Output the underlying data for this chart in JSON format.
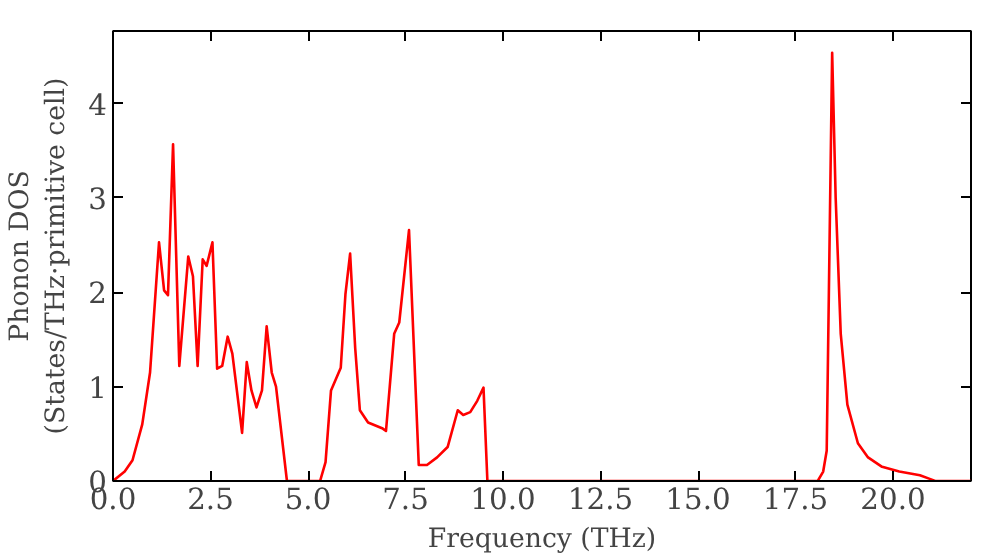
{
  "chart_data": {
    "type": "line",
    "xlabel": "Frequency (THz)",
    "ylabel": "Phonon DOS\n(States/THz·primitive cell)",
    "xlim": [
      0,
      22.0
    ],
    "ylim": [
      0,
      4.77
    ],
    "xticks": [
      {
        "value": 0,
        "label": "0.0"
      },
      {
        "value": 2.5,
        "label": "2.5"
      },
      {
        "value": 5,
        "label": "5.0"
      },
      {
        "value": 7.5,
        "label": "7.5"
      },
      {
        "value": 10,
        "label": "10.0"
      },
      {
        "value": 12.5,
        "label": "12.5"
      },
      {
        "value": 15,
        "label": "15.0"
      },
      {
        "value": 17.5,
        "label": "17.5"
      },
      {
        "value": 20,
        "label": "20.0"
      }
    ],
    "yticks": [
      0,
      1,
      2,
      3,
      4
    ],
    "grid": false,
    "marker": "none",
    "line_style": "solid",
    "series": [
      {
        "color": "#ff0000",
        "x": [
          0,
          0.3,
          0.5,
          0.75,
          0.95,
          1.18,
          1.31,
          1.41,
          1.54,
          1.7,
          1.93,
          2.05,
          2.17,
          2.3,
          2.4,
          2.55,
          2.67,
          2.8,
          2.94,
          3.06,
          3.31,
          3.43,
          3.55,
          3.68,
          3.82,
          3.94,
          4.07,
          4.18,
          4.46,
          5.31,
          5.45,
          5.59,
          5.84,
          5.96,
          6.08,
          6.21,
          6.33,
          6.54,
          6.9,
          7.0,
          7.21,
          7.34,
          7.59,
          7.84,
          8.05,
          8.31,
          8.58,
          8.84,
          8.98,
          9.16,
          9.34,
          9.5,
          9.6,
          18.07,
          18.21,
          18.3,
          18.44,
          18.53,
          18.66,
          18.83,
          19.1,
          19.36,
          19.72,
          20.16,
          20.69,
          20.96,
          21.08,
          22.0
        ],
        "values": [
          0,
          0.1,
          0.22,
          0.6,
          1.15,
          2.53,
          2.02,
          1.97,
          3.57,
          1.22,
          2.38,
          2.17,
          1.22,
          2.35,
          2.28,
          2.53,
          1.19,
          1.22,
          1.53,
          1.35,
          0.51,
          1.26,
          0.96,
          0.78,
          0.96,
          1.64,
          1.15,
          1.0,
          0,
          0,
          0.2,
          0.96,
          1.2,
          1.98,
          2.41,
          1.41,
          0.75,
          0.62,
          0.56,
          0.53,
          1.56,
          1.68,
          2.66,
          0.17,
          0.17,
          0.25,
          0.36,
          0.75,
          0.7,
          0.73,
          0.85,
          0.99,
          0,
          0,
          0.1,
          0.32,
          4.54,
          3.0,
          1.56,
          0.81,
          0.4,
          0.25,
          0.15,
          0.1,
          0.06,
          0.02,
          0,
          0
        ]
      }
    ]
  }
}
